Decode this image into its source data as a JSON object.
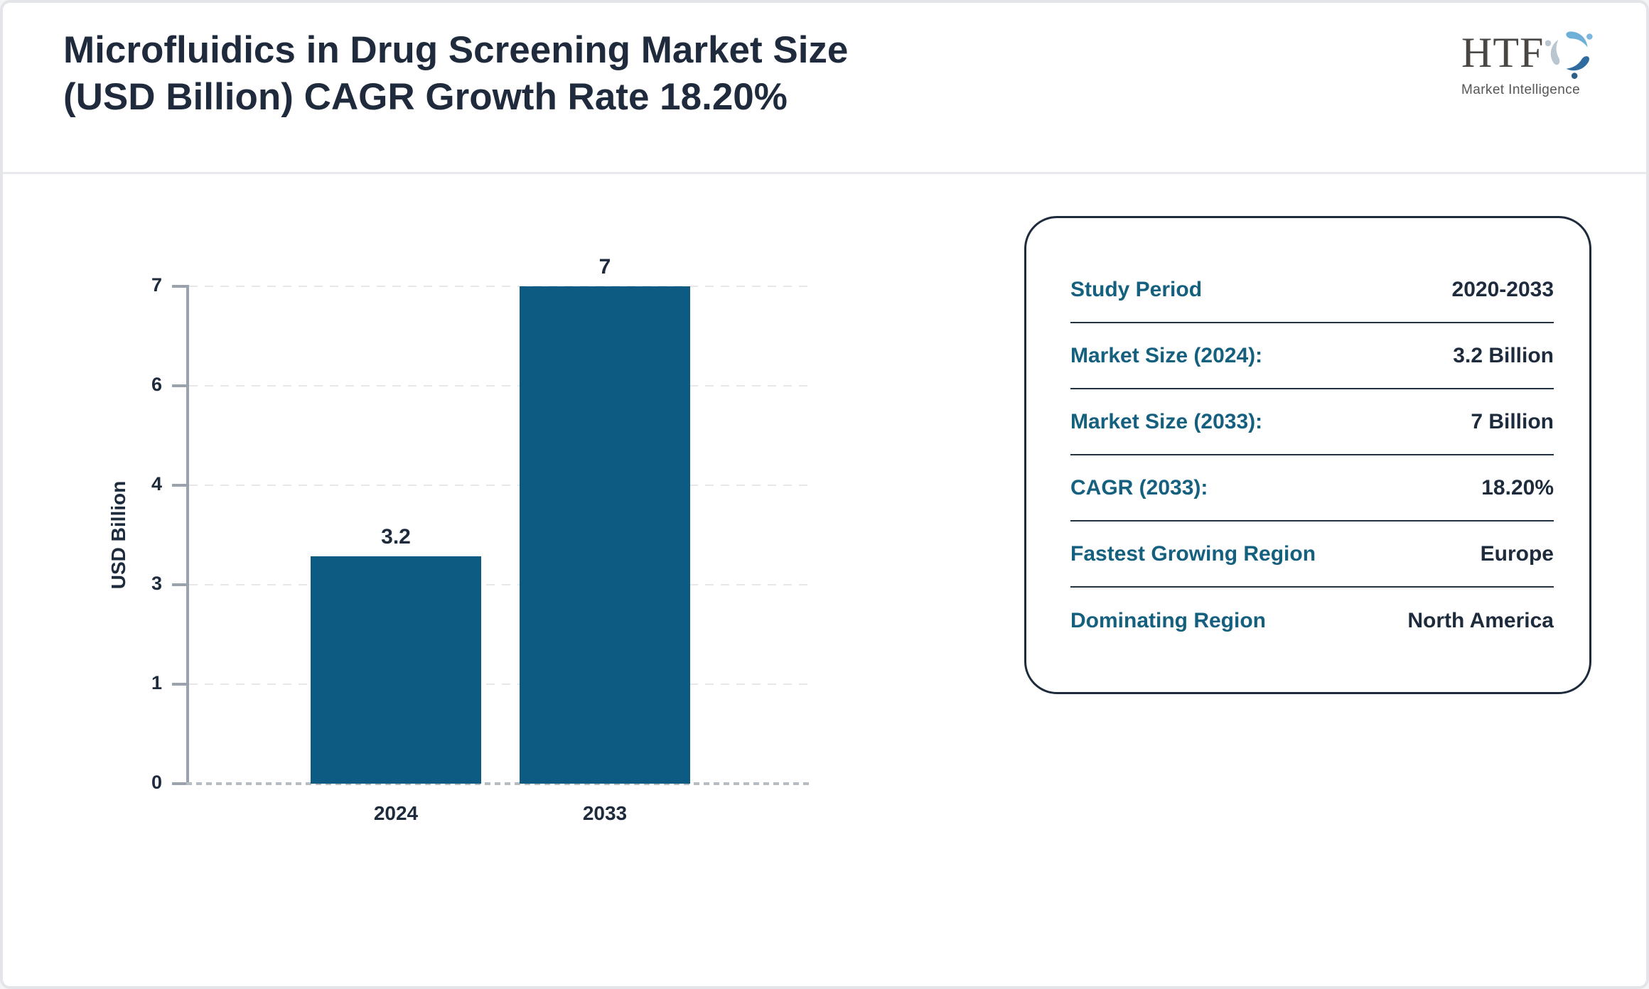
{
  "header": {
    "title_line1": "Microfluidics in Drug Screening Market Size",
    "title_line2": "(USD Billion) CAGR Growth Rate 18.20%"
  },
  "logo": {
    "name": "HTF",
    "subtitle": "Market Intelligence",
    "colors": {
      "light_blue": "#6fb0d8",
      "dark_blue": "#2e6ca0",
      "gray_blue": "#b9c5cf"
    }
  },
  "chart_data": {
    "type": "bar",
    "categories": [
      "2024",
      "2033"
    ],
    "values": [
      3.2,
      7
    ],
    "value_labels": [
      "3.2",
      "7"
    ],
    "title": "Microfluidics in Drug Screening Market Size (USD Billion) CAGR Growth Rate 18.20%",
    "xlabel": "",
    "ylabel": "USD Billion",
    "ylim": [
      0,
      7
    ],
    "ytick_labels_top_to_bottom": [
      "7",
      "6",
      "4",
      "3",
      "1",
      "0"
    ],
    "grid": true,
    "legend": "none",
    "bar_color": "#0d5b82"
  },
  "panel": {
    "rows": [
      {
        "label": "Study Period",
        "value": "2020-2033"
      },
      {
        "label": "Market Size (2024):",
        "value": "3.2 Billion"
      },
      {
        "label": "Market Size (2033):",
        "value": "7 Billion"
      },
      {
        "label": "CAGR (2033):",
        "value": "18.20%"
      },
      {
        "label": "Fastest Growing Region",
        "value": "Europe"
      },
      {
        "label": "Dominating Region",
        "value": "North America"
      }
    ]
  },
  "colors": {
    "navy_text": "#1f2b3c",
    "teal_label": "#15607f",
    "bar": "#0d5b82",
    "axis_gray": "#9aa2ad",
    "gridline": "#e7e7e7",
    "baseline_dots": "#b6bcc4",
    "frame_border": "#e3e5e9",
    "header_divider": "#e7e9ec"
  }
}
